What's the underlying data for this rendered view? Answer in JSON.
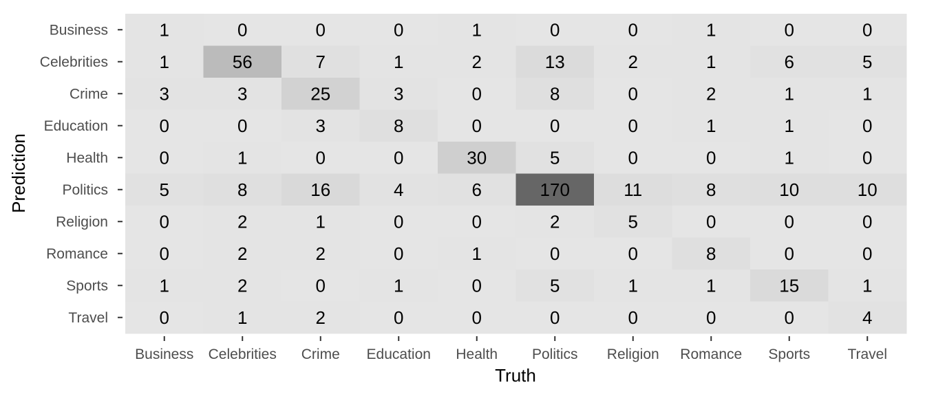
{
  "chart_data": {
    "type": "heatmap",
    "xlabel": "Truth",
    "ylabel": "Prediction",
    "x_categories": [
      "Business",
      "Celebrities",
      "Crime",
      "Education",
      "Health",
      "Politics",
      "Religion",
      "Romance",
      "Sports",
      "Travel"
    ],
    "y_categories": [
      "Business",
      "Celebrities",
      "Crime",
      "Education",
      "Health",
      "Politics",
      "Religion",
      "Romance",
      "Sports",
      "Travel"
    ],
    "values": [
      [
        1,
        0,
        0,
        0,
        1,
        0,
        0,
        1,
        0,
        0
      ],
      [
        1,
        56,
        7,
        1,
        2,
        13,
        2,
        1,
        6,
        5
      ],
      [
        3,
        3,
        25,
        3,
        0,
        8,
        0,
        2,
        1,
        1
      ],
      [
        0,
        0,
        3,
        8,
        0,
        0,
        0,
        1,
        1,
        0
      ],
      [
        0,
        1,
        0,
        0,
        30,
        5,
        0,
        0,
        1,
        0
      ],
      [
        5,
        8,
        16,
        4,
        6,
        170,
        11,
        8,
        10,
        10
      ],
      [
        0,
        2,
        1,
        0,
        0,
        2,
        5,
        0,
        0,
        0
      ],
      [
        0,
        2,
        2,
        0,
        1,
        0,
        0,
        8,
        0,
        0
      ],
      [
        1,
        2,
        0,
        1,
        0,
        5,
        1,
        1,
        15,
        1
      ],
      [
        0,
        1,
        2,
        0,
        0,
        0,
        0,
        0,
        0,
        4
      ]
    ],
    "color_scale": {
      "low": "#e5e5e5",
      "high": "#666666",
      "min": 0,
      "max": 170
    },
    "grid": false,
    "legend": "none"
  }
}
